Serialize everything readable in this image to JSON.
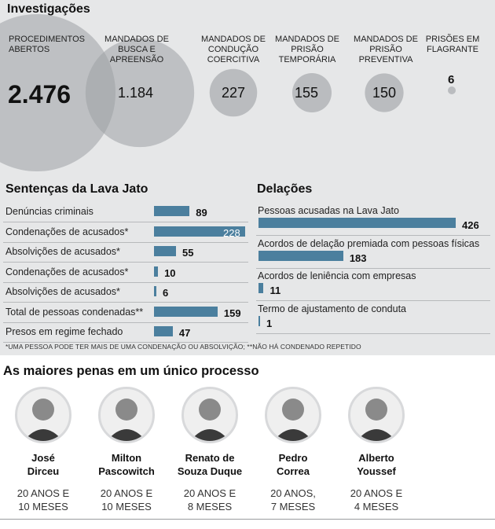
{
  "investigacoes": {
    "title": "Investigações",
    "items": [
      {
        "label": "PROCEDIMENTOS ABERTOS",
        "value": 2476,
        "display": "2.476"
      },
      {
        "label": "MANDADOS DE BUSCA E APREENSÃO",
        "value": 1184,
        "display": "1.184"
      },
      {
        "label": "MANDADOS DE CONDUÇÃO COERCITIVA",
        "value": 227,
        "display": "227"
      },
      {
        "label": "MANDADOS DE PRISÃO TEMPORÁRIA",
        "value": 155,
        "display": "155"
      },
      {
        "label": "MANDADOS DE PRISÃO PREVENTIVA",
        "value": 150,
        "display": "150"
      },
      {
        "label": "PRISÕES EM FLAGRANTE",
        "value": 6,
        "display": "6"
      }
    ]
  },
  "sentencas": {
    "title": "Sentenças da Lava Jato",
    "rows": [
      {
        "label": "Denúncias criminais",
        "value": 89
      },
      {
        "label": "Condenações de acusados*",
        "value": 228
      },
      {
        "label": "Absolvições de acusados*",
        "value": 55
      },
      {
        "label": "Condenações de acusados*",
        "value": 10
      },
      {
        "label": "Absolvições de acusados*",
        "value": 6
      },
      {
        "label": "Total de pessoas condenadas**",
        "value": 159
      },
      {
        "label": "Presos em regime fechado",
        "value": 47
      }
    ]
  },
  "delacoes": {
    "title": "Delações",
    "rows": [
      {
        "label": "Pessoas acusadas na Lava Jato",
        "value": 426
      },
      {
        "label": "Acordos de delação premiada com pessoas físicas",
        "value": 183
      },
      {
        "label": "Acordos de leniência com empresas",
        "value": 11
      },
      {
        "label": "Termo de ajustamento de conduta",
        "value": 1
      }
    ]
  },
  "footnote": "*UMA PESSOA PODE TER MAIS DE UMA CONDENAÇÃO OU ABSOLVIÇÃO; **NÃO HÁ CONDENADO REPETIDO",
  "penas": {
    "title": "As maiores penas em um único processo",
    "people": [
      {
        "name1": "José",
        "name2": "Dirceu",
        "sent1": "20 ANOS E",
        "sent2": "10 MESES"
      },
      {
        "name1": "Milton",
        "name2": "Pascowitch",
        "sent1": "20 ANOS E",
        "sent2": "10 MESES"
      },
      {
        "name1": "Renato de",
        "name2": "Souza Duque",
        "sent1": "20 ANOS E",
        "sent2": "8 MESES"
      },
      {
        "name1": "Pedro",
        "name2": "Correa",
        "sent1": "20 ANOS,",
        "sent2": "7 MESES"
      },
      {
        "name1": "Alberto",
        "name2": "Youssef",
        "sent1": "20 ANOS E",
        "sent2": "4 MESES"
      }
    ]
  },
  "chart_data": [
    {
      "type": "bubble",
      "title": "Investigações",
      "categories": [
        "PROCEDIMENTOS ABERTOS",
        "MANDADOS DE BUSCA E APREENSÃO",
        "MANDADOS DE CONDUÇÃO COERCITIVA",
        "MANDADOS DE PRISÃO TEMPORÁRIA",
        "MANDADOS DE PRISÃO PREVENTIVA",
        "PRISÕES EM FLAGRANTE"
      ],
      "values": [
        2476,
        1184,
        227,
        155,
        150,
        6
      ]
    },
    {
      "type": "bar",
      "orientation": "horizontal",
      "title": "Sentenças da Lava Jato",
      "categories": [
        "Denúncias criminais",
        "Condenações de acusados*",
        "Absolvições de acusados*",
        "Condenações de acusados*",
        "Absolvições de acusados*",
        "Total de pessoas condenadas**",
        "Presos em regime fechado"
      ],
      "values": [
        89,
        228,
        55,
        10,
        6,
        159,
        47
      ]
    },
    {
      "type": "bar",
      "orientation": "horizontal",
      "title": "Delações",
      "categories": [
        "Pessoas acusadas na Lava Jato",
        "Acordos de delação premiada com pessoas físicas",
        "Acordos de leniência com empresas",
        "Termo de ajustamento de conduta"
      ],
      "values": [
        426,
        183,
        11,
        1
      ]
    }
  ],
  "colors": {
    "bubble": "#9da0a4",
    "bar": "#4b7f9e",
    "panel": "#e6e7e8"
  }
}
